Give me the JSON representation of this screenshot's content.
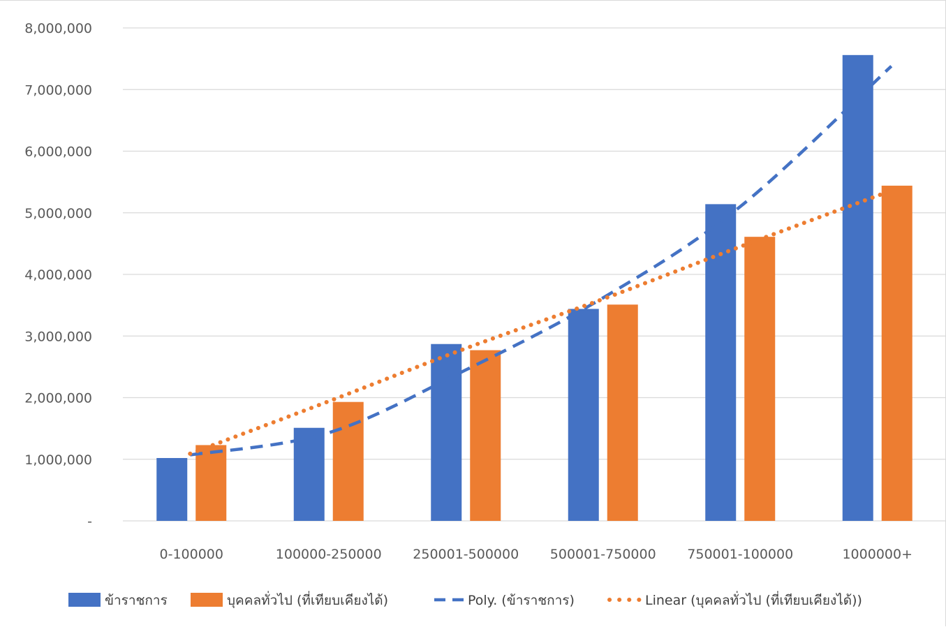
{
  "chart_data": {
    "type": "bar",
    "categories": [
      "0-100000",
      "100000-250000",
      "250001-500000",
      "500001-750000",
      "750001-100000",
      "1000000+"
    ],
    "series": [
      {
        "name": "ข้าราชการ",
        "color": "#4472C4",
        "values": [
          1020000,
          1510000,
          2870000,
          3440000,
          5140000,
          7560000
        ]
      },
      {
        "name": "บุคคลทั่วไป (ที่เทียบเคียงได้)",
        "color": "#ED7D31",
        "values": [
          1230000,
          1930000,
          2770000,
          3510000,
          4610000,
          5440000
        ]
      }
    ],
    "trendlines": [
      {
        "name": "Poly. (ข้าราชการ)",
        "type": "polynomial",
        "style": "dashed",
        "color": "#4472C4",
        "values": [
          1070000,
          1430000,
          2450000,
          3620000,
          5100000,
          7380000
        ]
      },
      {
        "name": "Linear (บุคคลทั่วไป (ที่เทียบเคียงได้))",
        "type": "linear",
        "style": "dotted",
        "color": "#ED7D31",
        "values": [
          1090000,
          1940000,
          2800000,
          3600000,
          4450000,
          5360000
        ]
      }
    ],
    "y_tick_labels": [
      "-",
      "1,000,000",
      "2,000,000",
      "3,000,000",
      "4,000,000",
      "5,000,000",
      "6,000,000",
      "7,000,000",
      "8,000,000"
    ],
    "ylim": [
      0,
      8000000
    ],
    "grid": true,
    "legend_position": "bottom"
  }
}
